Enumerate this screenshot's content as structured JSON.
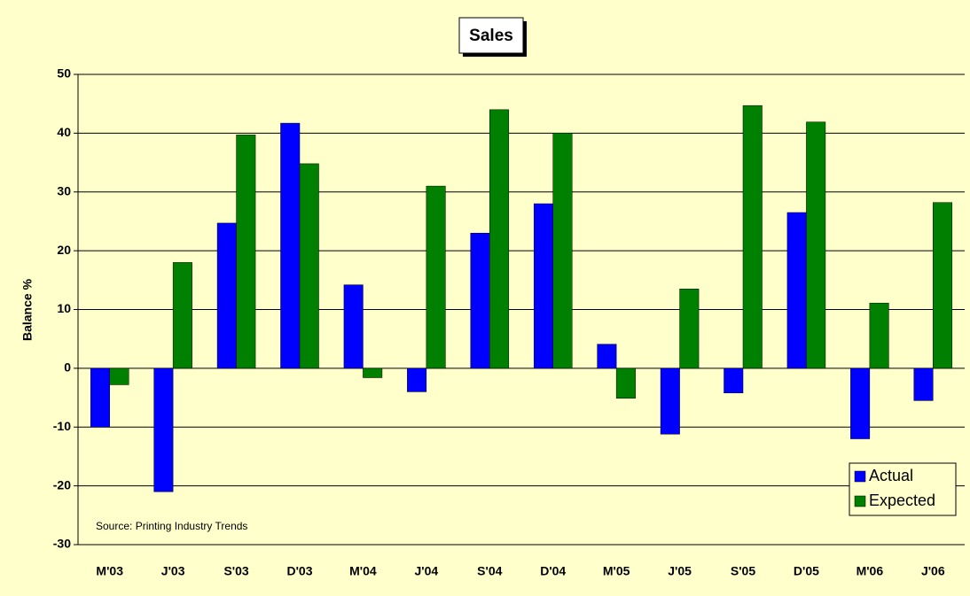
{
  "chart_data": {
    "type": "bar",
    "title": "Sales",
    "ylabel": "Balance %",
    "annotation": "Source: Printing Industry Trends",
    "categories": [
      "M'03",
      "J'03",
      "S'03",
      "D'03",
      "M'04",
      "J'04",
      "S'04",
      "D'04",
      "M'05",
      "J'05",
      "S'05",
      "D'05",
      "M'06",
      "J'06"
    ],
    "series": [
      {
        "name": "Actual",
        "color": "#0000ff",
        "values": [
          -10,
          -21,
          24.7,
          41.7,
          14.2,
          -4,
          23,
          28,
          4.1,
          -11.2,
          -4.2,
          26.5,
          -12,
          -5.5
        ]
      },
      {
        "name": "Expected",
        "color": "#008000",
        "values": [
          -2.8,
          18,
          39.7,
          34.8,
          -1.6,
          31,
          44,
          40,
          -5.1,
          13.5,
          44.7,
          41.9,
          11.1,
          28.2
        ]
      }
    ],
    "ylim": [
      -30,
      50
    ],
    "yticks": [
      -30,
      -20,
      -10,
      0,
      10,
      20,
      30,
      40,
      50
    ],
    "grid": true,
    "legend": "lower right"
  }
}
